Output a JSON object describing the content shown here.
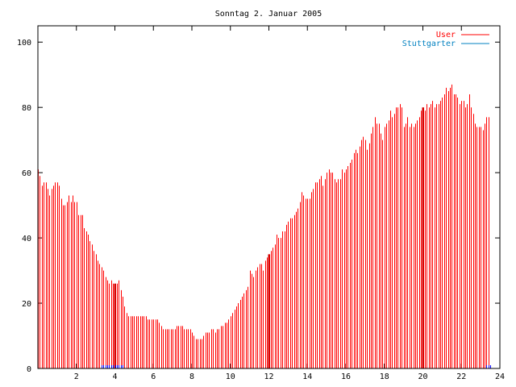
{
  "chart_data": {
    "type": "bar",
    "title": "Sonntag 2. Januar 2005",
    "xlabel": "",
    "ylabel": "",
    "xlim": [
      0,
      24
    ],
    "ylim": [
      0,
      105
    ],
    "x_ticks": [
      2,
      4,
      6,
      8,
      10,
      12,
      14,
      16,
      18,
      20,
      22,
      24
    ],
    "x_tick_labels": [
      "2",
      "4",
      "6",
      "8",
      "10",
      "12",
      "14",
      "16",
      "18",
      "20",
      "22",
      "24"
    ],
    "y_ticks": [
      0,
      20,
      40,
      60,
      80,
      100
    ],
    "y_tick_labels": [
      "0",
      "20",
      "40",
      "60",
      "80",
      "100"
    ],
    "legend_position": "top-right",
    "series": [
      {
        "name": "User",
        "color": "#ff0000",
        "x_start": 0,
        "x_step": 0.1,
        "values": [
          61,
          59,
          56,
          57,
          57,
          55,
          53,
          55,
          56,
          57,
          57,
          56,
          52,
          50,
          50,
          51,
          53,
          51,
          53,
          51,
          51,
          47,
          47,
          47,
          43,
          42,
          41,
          39,
          38,
          36,
          35,
          33,
          32,
          31,
          30,
          28,
          27,
          26,
          27,
          26,
          26,
          26,
          27,
          24,
          22,
          19,
          17,
          16,
          16,
          16,
          16,
          16,
          16,
          16,
          16,
          16,
          16,
          15,
          15,
          15,
          15,
          15,
          15,
          14,
          13,
          12,
          12,
          12,
          12,
          12,
          12,
          12,
          13,
          13,
          13,
          13,
          12,
          12,
          12,
          12,
          11,
          10,
          9,
          9,
          9,
          9,
          10,
          11,
          11,
          11,
          12,
          12,
          11,
          12,
          12,
          13,
          13,
          14,
          14,
          15,
          16,
          17,
          18,
          19,
          20,
          21,
          22,
          23,
          24,
          25,
          30,
          29,
          28,
          30,
          31,
          32,
          32,
          30,
          33,
          34,
          35,
          36,
          37,
          38,
          41,
          40,
          40,
          42,
          42,
          44,
          45,
          46,
          46,
          47,
          48,
          49,
          51,
          54,
          53,
          52,
          52,
          52,
          54,
          55,
          57,
          57,
          58,
          59,
          56,
          58,
          60,
          61,
          60,
          60,
          58,
          57,
          58,
          58,
          61,
          60,
          61,
          62,
          63,
          64,
          66,
          67,
          66,
          68,
          70,
          71,
          70,
          67,
          69,
          72,
          74,
          77,
          75,
          75,
          72,
          70,
          74,
          75,
          76,
          79,
          77,
          78,
          80,
          80,
          81,
          80,
          74,
          75,
          77,
          74,
          75,
          74,
          75,
          76,
          77,
          79,
          80,
          79,
          81,
          80,
          81,
          82,
          80,
          81,
          81,
          82,
          83,
          84,
          86,
          85,
          86,
          87,
          84,
          84,
          83,
          81,
          82,
          82,
          80,
          81,
          84,
          80,
          78,
          75,
          74,
          74,
          74,
          73,
          75,
          77,
          77
        ]
      },
      {
        "name": "Stuttgarter",
        "color": "#0000ff",
        "x_start": 0,
        "x_step": 0.1,
        "values": [
          0,
          0,
          0,
          0,
          0,
          0,
          0,
          0,
          0,
          0,
          0,
          0,
          0,
          0,
          0,
          0,
          0,
          0,
          0,
          0,
          0,
          0,
          0,
          0,
          0,
          0,
          0,
          0,
          0,
          0,
          0,
          0,
          0,
          1,
          1,
          1,
          1,
          1,
          1,
          1,
          1,
          1,
          1,
          1,
          1,
          0,
          0,
          0,
          0,
          0,
          0,
          0,
          0,
          0,
          0,
          0,
          0,
          0,
          0,
          0,
          0,
          0,
          0,
          0,
          0,
          0,
          0,
          0,
          0,
          0,
          0,
          0,
          0,
          0,
          0,
          0,
          0,
          0,
          0,
          0,
          0,
          0,
          0,
          0,
          0,
          0,
          0,
          0,
          0,
          0,
          0,
          0,
          0,
          0,
          0,
          0,
          0,
          0,
          0,
          0,
          0,
          0,
          0,
          0,
          0,
          0,
          0,
          0,
          0,
          0,
          0,
          0,
          0,
          0,
          0,
          0,
          0,
          0,
          0,
          0,
          0,
          0,
          0,
          0,
          0,
          0,
          0,
          0,
          0,
          0,
          0,
          0,
          0,
          0,
          0,
          0,
          0,
          0,
          0,
          0,
          0,
          0,
          0,
          0,
          0,
          0,
          0,
          0,
          0,
          0,
          0,
          0,
          0,
          0,
          0,
          0,
          0,
          0,
          0,
          0,
          0,
          0,
          0,
          0,
          0,
          0,
          0,
          0,
          0,
          0,
          0,
          0,
          0,
          0,
          0,
          0,
          0,
          0,
          0,
          0,
          0,
          0,
          0,
          0,
          0,
          0,
          0,
          0,
          0,
          0,
          0,
          0,
          0,
          0,
          0,
          0,
          0,
          0,
          0,
          0,
          0,
          0,
          0,
          0,
          0,
          0,
          0,
          0,
          0,
          0,
          0,
          0,
          0,
          0,
          0,
          0,
          0,
          0,
          0,
          0,
          0,
          0,
          0,
          0,
          0,
          0,
          0,
          0,
          0,
          0,
          0,
          0,
          0,
          1,
          1,
          1
        ]
      }
    ]
  }
}
